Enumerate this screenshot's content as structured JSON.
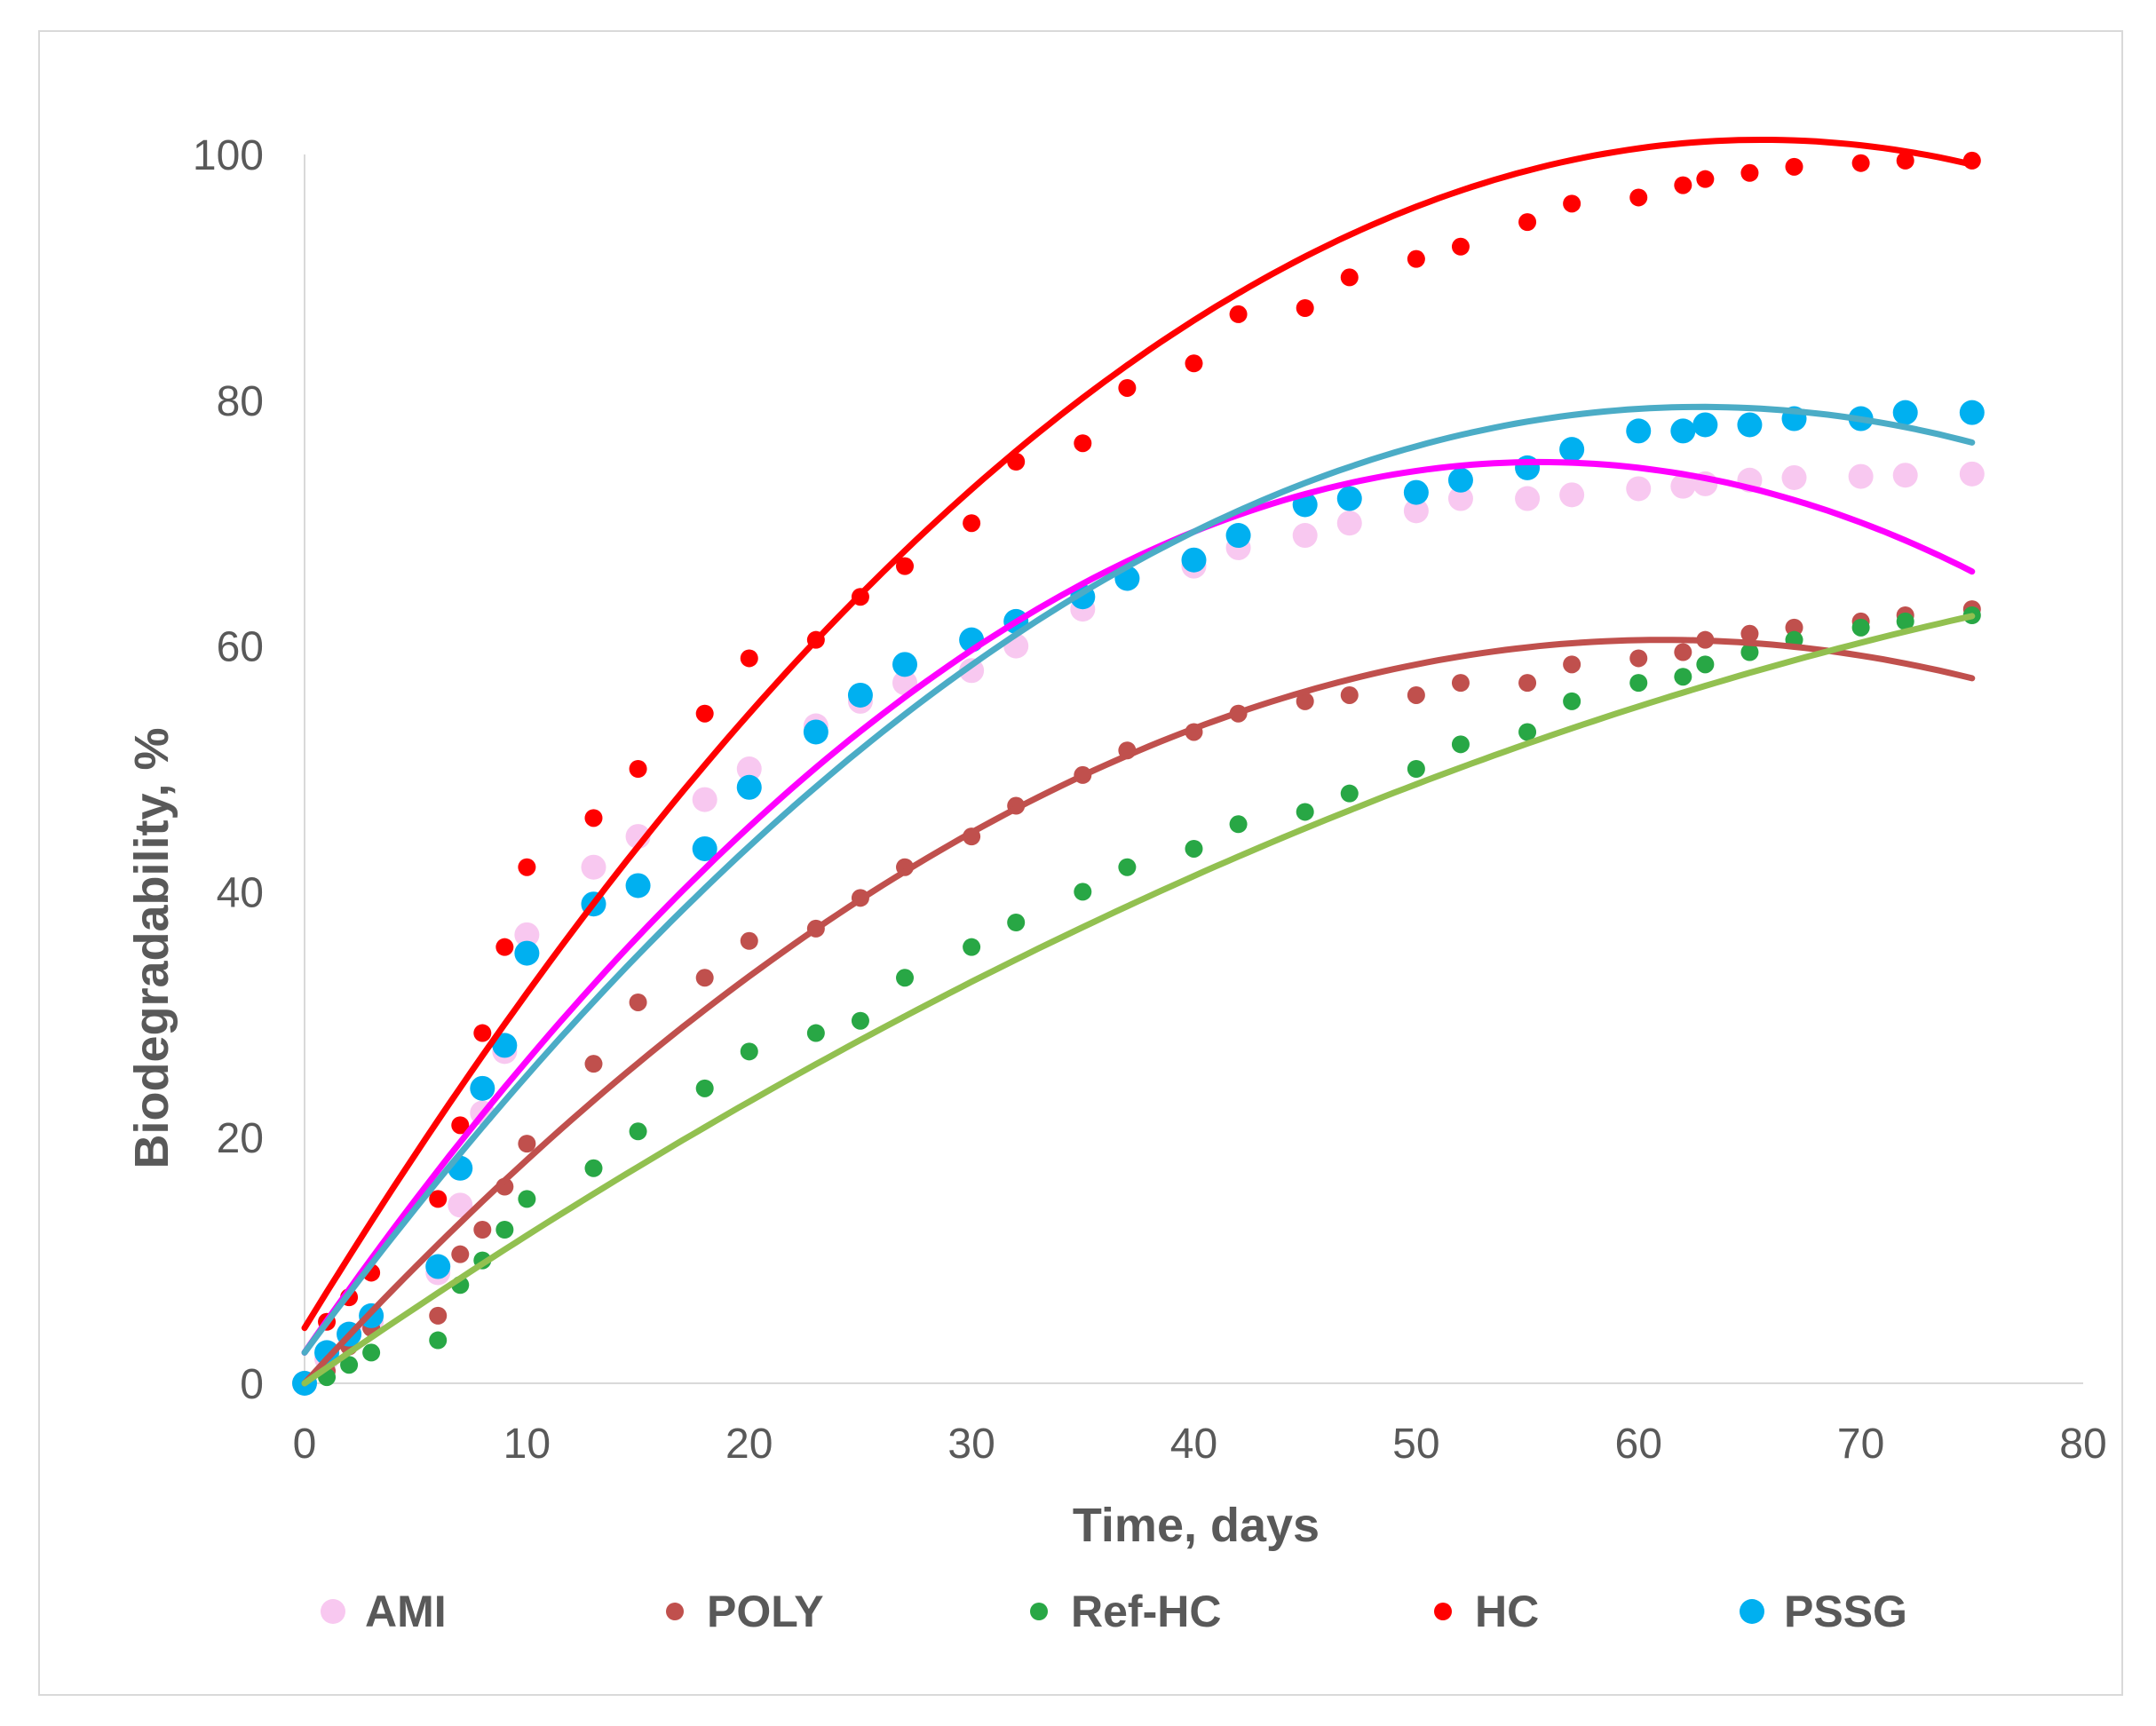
{
  "chart_data": {
    "type": "scatter",
    "title": "",
    "xlabel": "Time, days",
    "ylabel": "Biodegradability, %",
    "xlim": [
      0,
      80
    ],
    "ylim": [
      0,
      100
    ],
    "xticks": [
      0,
      10,
      20,
      30,
      40,
      50,
      60,
      70,
      80
    ],
    "yticks": [
      0,
      20,
      40,
      60,
      80,
      100
    ],
    "xtick_labels": [
      "0",
      "10",
      "20",
      "30",
      "40",
      "50",
      "60",
      "70",
      "80"
    ],
    "ytick_labels": [
      "0",
      "20",
      "40",
      "60",
      "80",
      "100"
    ],
    "grid": false,
    "legend_position": "bottom",
    "series": [
      {
        "name": "AMI",
        "marker_color": "#f8c8f0",
        "marker_size": "large",
        "trendline": "polynomial",
        "trend_color": "#ff00ff",
        "trend_coeffs": [
          2.5,
          2.61,
          -0.0235
        ],
        "points": [
          [
            0,
            0
          ],
          [
            1,
            2
          ],
          [
            2,
            4
          ],
          [
            3,
            5
          ],
          [
            6,
            9
          ],
          [
            7,
            14.5
          ],
          [
            8,
            22
          ],
          [
            9,
            27
          ],
          [
            10,
            36.5
          ],
          [
            13,
            42
          ],
          [
            15,
            44.5
          ],
          [
            18,
            47.5
          ],
          [
            20,
            50
          ],
          [
            23,
            53.5
          ],
          [
            25,
            55.5
          ],
          [
            27,
            57
          ],
          [
            30,
            58
          ],
          [
            32,
            60
          ],
          [
            35,
            63
          ],
          [
            37,
            65.5
          ],
          [
            40,
            66.5
          ],
          [
            42,
            68
          ],
          [
            45,
            69
          ],
          [
            47,
            70
          ],
          [
            50,
            71
          ],
          [
            52,
            72
          ],
          [
            55,
            72
          ],
          [
            57,
            72.3
          ],
          [
            60,
            72.8
          ],
          [
            62,
            73
          ],
          [
            63,
            73.2
          ],
          [
            65,
            73.5
          ],
          [
            67,
            73.7
          ],
          [
            70,
            73.8
          ],
          [
            72,
            73.9
          ],
          [
            75,
            74
          ]
        ]
      },
      {
        "name": "POLY",
        "marker_color": "#c0504d",
        "marker_size": "small",
        "trendline": "polynomial",
        "trend_color": "#c0504d",
        "trend_coeffs": [
          0,
          1.98,
          -0.0162
        ],
        "points": [
          [
            0,
            0
          ],
          [
            1,
            1
          ],
          [
            2,
            3
          ],
          [
            3,
            4.5
          ],
          [
            6,
            5.5
          ],
          [
            7,
            10.5
          ],
          [
            8,
            12.5
          ],
          [
            9,
            16
          ],
          [
            10,
            19.5
          ],
          [
            13,
            26
          ],
          [
            15,
            31
          ],
          [
            18,
            33
          ],
          [
            20,
            36
          ],
          [
            23,
            37
          ],
          [
            25,
            39.5
          ],
          [
            27,
            42
          ],
          [
            30,
            44.5
          ],
          [
            32,
            47
          ],
          [
            35,
            49.5
          ],
          [
            37,
            51.5
          ],
          [
            40,
            53
          ],
          [
            42,
            54.5
          ],
          [
            45,
            55.5
          ],
          [
            47,
            56
          ],
          [
            50,
            56
          ],
          [
            52,
            57
          ],
          [
            55,
            57
          ],
          [
            57,
            58.5
          ],
          [
            60,
            59
          ],
          [
            62,
            59.5
          ],
          [
            63,
            60.5
          ],
          [
            65,
            61
          ],
          [
            67,
            61.5
          ],
          [
            70,
            62
          ],
          [
            72,
            62.5
          ],
          [
            75,
            63
          ]
        ]
      },
      {
        "name": "Ref-HC",
        "marker_color": "#28a745",
        "marker_size": "small",
        "trendline": "polynomial",
        "trend_color": "#92c050",
        "trend_coeffs": [
          0,
          1.26,
          -0.0057
        ],
        "points": [
          [
            0,
            0
          ],
          [
            1,
            0.5
          ],
          [
            2,
            1.5
          ],
          [
            3,
            2.5
          ],
          [
            6,
            3.5
          ],
          [
            7,
            8
          ],
          [
            8,
            10
          ],
          [
            9,
            12.5
          ],
          [
            10,
            15
          ],
          [
            13,
            17.5
          ],
          [
            15,
            20.5
          ],
          [
            18,
            24
          ],
          [
            20,
            27
          ],
          [
            23,
            28.5
          ],
          [
            25,
            29.5
          ],
          [
            27,
            33
          ],
          [
            30,
            35.5
          ],
          [
            32,
            37.5
          ],
          [
            35,
            40
          ],
          [
            37,
            42
          ],
          [
            40,
            43.5
          ],
          [
            42,
            45.5
          ],
          [
            45,
            46.5
          ],
          [
            47,
            48
          ],
          [
            50,
            50
          ],
          [
            52,
            52
          ],
          [
            55,
            53
          ],
          [
            57,
            55.5
          ],
          [
            60,
            57
          ],
          [
            62,
            57.5
          ],
          [
            63,
            58.5
          ],
          [
            65,
            59.5
          ],
          [
            67,
            60.5
          ],
          [
            70,
            61.5
          ],
          [
            72,
            62
          ],
          [
            75,
            62.5
          ]
        ]
      },
      {
        "name": "HC",
        "marker_color": "#ff0000",
        "marker_size": "small",
        "trendline": "polynomial",
        "trend_color": "#ff0000",
        "trend_coeffs": [
          4.5,
          2.95,
          -0.0225
        ],
        "points": [
          [
            0,
            0
          ],
          [
            1,
            5
          ],
          [
            2,
            7
          ],
          [
            3,
            9
          ],
          [
            6,
            15
          ],
          [
            7,
            21
          ],
          [
            8,
            28.5
          ],
          [
            9,
            35.5
          ],
          [
            10,
            42
          ],
          [
            13,
            46
          ],
          [
            15,
            50
          ],
          [
            18,
            54.5
          ],
          [
            20,
            59
          ],
          [
            23,
            60.5
          ],
          [
            25,
            64
          ],
          [
            27,
            66.5
          ],
          [
            30,
            70
          ],
          [
            32,
            75
          ],
          [
            35,
            76.5
          ],
          [
            37,
            81
          ],
          [
            40,
            83
          ],
          [
            42,
            87
          ],
          [
            45,
            87.5
          ],
          [
            47,
            90
          ],
          [
            50,
            91.5
          ],
          [
            52,
            92.5
          ],
          [
            55,
            94.5
          ],
          [
            57,
            96
          ],
          [
            60,
            96.5
          ],
          [
            62,
            97.5
          ],
          [
            63,
            98
          ],
          [
            65,
            98.5
          ],
          [
            67,
            99
          ],
          [
            70,
            99.3
          ],
          [
            72,
            99.5
          ],
          [
            75,
            99.5
          ]
        ]
      },
      {
        "name": "PSSG",
        "marker_color": "#00b0f0",
        "marker_size": "large",
        "trendline": "polynomial",
        "trend_color": "#4bacc6",
        "trend_coeffs": [
          2.5,
          2.45,
          -0.0195
        ],
        "points": [
          [
            0,
            0
          ],
          [
            1,
            2.5
          ],
          [
            2,
            4
          ],
          [
            3,
            5.5
          ],
          [
            6,
            9.5
          ],
          [
            7,
            17.5
          ],
          [
            8,
            24
          ],
          [
            9,
            27.5
          ],
          [
            10,
            35
          ],
          [
            13,
            39
          ],
          [
            15,
            40.5
          ],
          [
            18,
            43.5
          ],
          [
            20,
            48.5
          ],
          [
            23,
            53
          ],
          [
            25,
            56
          ],
          [
            27,
            58.5
          ],
          [
            30,
            60.5
          ],
          [
            32,
            62
          ],
          [
            35,
            64
          ],
          [
            37,
            65.5
          ],
          [
            40,
            67
          ],
          [
            42,
            69
          ],
          [
            45,
            71.5
          ],
          [
            47,
            72
          ],
          [
            50,
            72.5
          ],
          [
            52,
            73.5
          ],
          [
            55,
            74.5
          ],
          [
            57,
            76
          ],
          [
            60,
            77.5
          ],
          [
            62,
            77.5
          ],
          [
            63,
            78
          ],
          [
            65,
            78
          ],
          [
            67,
            78.5
          ],
          [
            70,
            78.5
          ],
          [
            72,
            79
          ],
          [
            75,
            79
          ]
        ]
      }
    ]
  }
}
